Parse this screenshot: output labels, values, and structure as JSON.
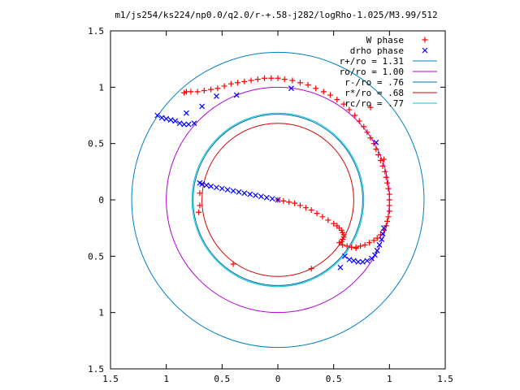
{
  "title": "m1/js254/ks224/np0.0/q2.0/r-+.58-j282/logRho-1.025/M3.99/512",
  "chart_data": {
    "type": "scatter",
    "title": "m1/js254/ks224/np0.0/q2.0/r-+.58-j282/logRho-1.025/M3.99/512",
    "xlim": [
      -1.5,
      1.5
    ],
    "ylim": [
      -1.5,
      1.5
    ],
    "x_ticks": [
      -1.5,
      -1,
      -0.5,
      0,
      0.5,
      1,
      1.5
    ],
    "y_ticks": [
      -1.5,
      -1,
      -0.5,
      0,
      0.5,
      1,
      1.5
    ],
    "x_tick_labels": [
      "1.5",
      "1",
      "0.5",
      "0",
      "0.5",
      "1",
      "1.5"
    ],
    "y_tick_labels": [
      "1.5",
      "1",
      "0.5",
      "0",
      "0.5",
      "1",
      "1.5"
    ],
    "grid": false,
    "legend_position": "top-right",
    "colors": {
      "w_phase": "#ff0000",
      "drho_phase": "#0000ff",
      "r_plus": "#0080c0",
      "r_o": "#b000d0",
      "r_minus": "#0070b0",
      "r_star": "#d00000",
      "r_c": "#00c8d0"
    },
    "circles": [
      {
        "name": "r+/ro = 1.31",
        "r": 1.31,
        "color": "#0080c0"
      },
      {
        "name": "ro/ro = 1.00",
        "r": 1.0,
        "color": "#b000d0"
      },
      {
        "name": "r-/ro = .76",
        "r": 0.76,
        "color": "#0070b0"
      },
      {
        "name": "r*/ro = .68",
        "r": 0.68,
        "color": "#d00000"
      },
      {
        "name": "rc/ro = .77",
        "r": 0.77,
        "color": "#00c8d0"
      }
    ],
    "series": [
      {
        "name": "W phase",
        "marker": "+",
        "color": "#ff0000",
        "points": [
          [
            0.0,
            0.0
          ],
          [
            0.05,
            -0.01
          ],
          [
            0.1,
            -0.02
          ],
          [
            0.15,
            -0.03
          ],
          [
            0.2,
            -0.05
          ],
          [
            0.25,
            -0.07
          ],
          [
            0.3,
            -0.09
          ],
          [
            0.35,
            -0.12
          ],
          [
            0.4,
            -0.15
          ],
          [
            0.45,
            -0.18
          ],
          [
            0.5,
            -0.21
          ],
          [
            0.53,
            -0.23
          ],
          [
            0.55,
            -0.25
          ],
          [
            0.57,
            -0.27
          ],
          [
            0.58,
            -0.29
          ],
          [
            0.59,
            -0.31
          ],
          [
            0.59,
            -0.33
          ],
          [
            0.58,
            -0.35
          ],
          [
            0.57,
            -0.37
          ],
          [
            0.55,
            -0.38
          ],
          [
            0.58,
            -0.4
          ],
          [
            0.62,
            -0.41
          ],
          [
            0.66,
            -0.42
          ],
          [
            0.7,
            -0.42
          ],
          [
            0.74,
            -0.41
          ],
          [
            0.78,
            -0.4
          ],
          [
            0.82,
            -0.38
          ],
          [
            0.86,
            -0.36
          ],
          [
            0.89,
            -0.34
          ],
          [
            0.92,
            -0.31
          ],
          [
            0.95,
            -0.27
          ],
          [
            0.97,
            -0.23
          ],
          [
            0.98,
            -0.19
          ],
          [
            0.99,
            -0.15
          ],
          [
            1.0,
            -0.1
          ],
          [
            1.0,
            -0.05
          ],
          [
            1.0,
            0.0
          ],
          [
            1.0,
            0.05
          ],
          [
            0.99,
            0.1
          ],
          [
            0.98,
            0.15
          ],
          [
            0.97,
            0.2
          ],
          [
            0.96,
            0.25
          ],
          [
            0.94,
            0.3
          ],
          [
            0.92,
            0.35
          ],
          [
            0.9,
            0.4
          ],
          [
            0.88,
            0.45
          ],
          [
            0.86,
            0.5
          ],
          [
            0.83,
            0.55
          ],
          [
            0.8,
            0.6
          ],
          [
            0.77,
            0.65
          ],
          [
            0.73,
            0.7
          ],
          [
            0.69,
            0.75
          ],
          [
            0.64,
            0.8
          ],
          [
            0.59,
            0.85
          ],
          [
            0.53,
            0.89
          ],
          [
            0.47,
            0.93
          ],
          [
            0.41,
            0.96
          ],
          [
            0.34,
            0.99
          ],
          [
            0.27,
            1.02
          ],
          [
            0.2,
            1.04
          ],
          [
            0.13,
            1.06
          ],
          [
            0.06,
            1.07
          ],
          [
            0.0,
            1.08
          ],
          [
            -0.06,
            1.08
          ],
          [
            -0.12,
            1.08
          ],
          [
            -0.18,
            1.07
          ],
          [
            -0.24,
            1.06
          ],
          [
            -0.3,
            1.05
          ],
          [
            -0.36,
            1.04
          ],
          [
            -0.42,
            1.03
          ],
          [
            -0.48,
            1.01
          ],
          [
            -0.54,
            0.99
          ],
          [
            -0.6,
            0.98
          ],
          [
            -0.66,
            0.97
          ],
          [
            -0.72,
            0.96
          ],
          [
            -0.78,
            0.96
          ],
          [
            -0.82,
            0.96
          ],
          [
            -0.84,
            0.95
          ],
          [
            -0.7,
            0.06
          ],
          [
            -0.7,
            -0.05
          ],
          [
            -0.71,
            -0.11
          ],
          [
            -0.4,
            -0.57
          ],
          [
            0.3,
            -0.61
          ],
          [
            0.7,
            -0.43
          ],
          [
            0.83,
            0.82
          ],
          [
            0.95,
            0.36
          ]
        ]
      },
      {
        "name": "drho phase",
        "marker": "x",
        "color": "#0000ff",
        "points": [
          [
            0.0,
            0.0
          ],
          [
            -0.05,
            0.01
          ],
          [
            -0.1,
            0.02
          ],
          [
            -0.15,
            0.03
          ],
          [
            -0.2,
            0.04
          ],
          [
            -0.25,
            0.05
          ],
          [
            -0.3,
            0.06
          ],
          [
            -0.35,
            0.07
          ],
          [
            -0.4,
            0.08
          ],
          [
            -0.45,
            0.09
          ],
          [
            -0.5,
            0.1
          ],
          [
            -0.55,
            0.11
          ],
          [
            -0.6,
            0.12
          ],
          [
            -0.64,
            0.13
          ],
          [
            -0.68,
            0.14
          ],
          [
            -0.7,
            0.15
          ],
          [
            0.6,
            -0.5
          ],
          [
            0.64,
            -0.53
          ],
          [
            0.68,
            -0.54
          ],
          [
            0.72,
            -0.55
          ],
          [
            0.76,
            -0.55
          ],
          [
            0.8,
            -0.54
          ],
          [
            0.84,
            -0.52
          ],
          [
            0.87,
            -0.49
          ],
          [
            0.89,
            -0.45
          ],
          [
            0.91,
            -0.4
          ],
          [
            0.93,
            -0.35
          ],
          [
            0.94,
            -0.3
          ],
          [
            0.95,
            -0.25
          ],
          [
            -0.75,
            0.68
          ],
          [
            -0.8,
            0.67
          ],
          [
            -0.84,
            0.67
          ],
          [
            -0.88,
            0.68
          ],
          [
            -0.92,
            0.7
          ],
          [
            -0.96,
            0.71
          ],
          [
            -1.0,
            0.72
          ],
          [
            -1.04,
            0.73
          ],
          [
            -1.08,
            0.75
          ],
          [
            -0.82,
            0.77
          ],
          [
            -0.68,
            0.83
          ],
          [
            -0.55,
            0.92
          ],
          [
            -0.37,
            0.93
          ],
          [
            0.12,
            0.99
          ],
          [
            0.88,
            0.51
          ],
          [
            0.56,
            -0.6
          ]
        ]
      }
    ]
  }
}
